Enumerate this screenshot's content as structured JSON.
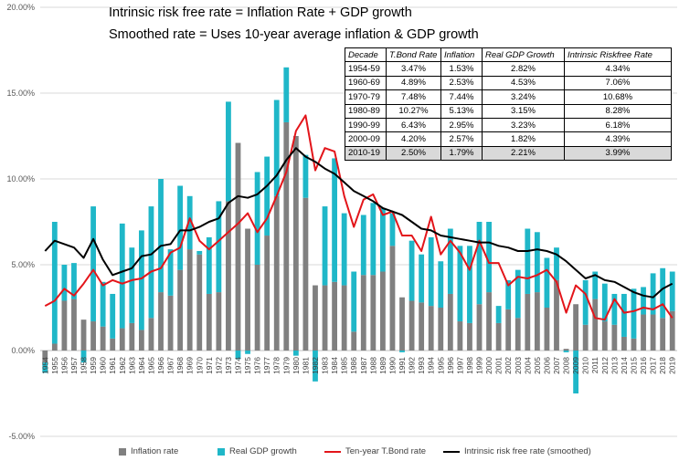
{
  "title_line1": "Intrinsic risk free rate = Inflation Rate + GDP growth",
  "title_line2": "Smoothed rate = Uses 10-year average inflation & GDP growth",
  "chart_data": {
    "type": "bar",
    "stacked": true,
    "x": [
      1954,
      1955,
      1956,
      1957,
      1958,
      1959,
      1960,
      1961,
      1962,
      1963,
      1964,
      1965,
      1966,
      1967,
      1968,
      1969,
      1970,
      1971,
      1972,
      1973,
      1974,
      1975,
      1976,
      1977,
      1978,
      1979,
      1980,
      1981,
      1982,
      1983,
      1984,
      1985,
      1986,
      1987,
      1988,
      1989,
      1990,
      1991,
      1992,
      1993,
      1994,
      1995,
      1996,
      1997,
      1998,
      1999,
      2000,
      2001,
      2002,
      2003,
      2004,
      2005,
      2006,
      2007,
      2008,
      2009,
      2010,
      2011,
      2012,
      2013,
      2014,
      2015,
      2016,
      2017,
      2018,
      2019
    ],
    "ylim": [
      -5,
      20
    ],
    "ytick_labels": [
      "-5.00%",
      "0.00%",
      "5.00%",
      "10.00%",
      "15.00%",
      "20.00%"
    ],
    "ytick_values": [
      -5,
      0,
      5,
      10,
      15,
      20
    ],
    "series": [
      {
        "name": "Inflation rate",
        "color": "#808080",
        "kind": "bar",
        "values": [
          -0.7,
          0.4,
          2.9,
          3.0,
          1.8,
          1.7,
          1.4,
          0.7,
          1.3,
          1.6,
          1.2,
          1.9,
          3.4,
          3.2,
          4.7,
          5.9,
          5.6,
          3.3,
          3.4,
          8.7,
          12.1,
          7.1,
          5.0,
          6.7,
          9.0,
          13.3,
          12.5,
          8.9,
          3.8,
          3.8,
          4.0,
          3.8,
          1.1,
          4.4,
          4.4,
          4.6,
          6.1,
          3.1,
          2.9,
          2.8,
          2.6,
          2.5,
          3.3,
          1.7,
          1.6,
          2.7,
          3.4,
          1.6,
          2.4,
          1.9,
          3.3,
          3.4,
          2.5,
          4.1,
          0.1,
          2.7,
          1.5,
          3.0,
          1.7,
          1.5,
          0.8,
          0.7,
          2.1,
          2.1,
          1.9,
          2.3
        ]
      },
      {
        "name": "Real GDP growth",
        "color": "#1fb7c8",
        "kind": "bar",
        "values": [
          -0.6,
          7.1,
          2.1,
          2.1,
          -0.7,
          6.7,
          2.6,
          2.6,
          6.1,
          4.4,
          5.8,
          6.5,
          6.6,
          2.7,
          4.9,
          3.1,
          0.2,
          3.3,
          5.3,
          5.8,
          -0.5,
          -0.2,
          5.4,
          4.6,
          5.6,
          3.2,
          -0.3,
          2.5,
          -1.8,
          4.6,
          7.2,
          4.2,
          3.5,
          3.5,
          4.2,
          3.7,
          1.9,
          -0.1,
          3.5,
          2.8,
          4.0,
          2.7,
          3.8,
          4.4,
          4.5,
          4.8,
          4.1,
          1.0,
          1.7,
          2.8,
          3.8,
          3.5,
          2.9,
          1.9,
          -0.1,
          -2.5,
          2.6,
          1.6,
          2.2,
          1.8,
          2.5,
          2.9,
          1.6,
          2.4,
          2.9,
          2.3
        ]
      },
      {
        "name": "Ten-year T.Bond rate",
        "color": "#e3151a",
        "kind": "line",
        "values": [
          2.6,
          2.9,
          3.6,
          3.2,
          3.9,
          4.7,
          3.8,
          4.1,
          3.9,
          4.1,
          4.2,
          4.6,
          4.8,
          5.7,
          6.0,
          7.7,
          6.4,
          5.9,
          6.4,
          6.9,
          7.4,
          8.0,
          6.9,
          7.7,
          9.0,
          10.4,
          12.8,
          13.7,
          10.5,
          11.8,
          11.6,
          9.0,
          7.2,
          8.8,
          9.1,
          7.9,
          8.1,
          6.7,
          6.7,
          5.8,
          7.8,
          5.6,
          6.4,
          5.7,
          4.7,
          6.4,
          5.1,
          5.1,
          3.8,
          4.3,
          4.2,
          4.4,
          4.7,
          4.0,
          2.2,
          3.8,
          3.3,
          1.9,
          1.8,
          3.0,
          2.2,
          2.3,
          2.5,
          2.4,
          2.7,
          1.9
        ]
      },
      {
        "name": "Intrinsic risk free rate (smoothed)",
        "color": "#000000",
        "kind": "line",
        "values": [
          5.8,
          6.4,
          6.2,
          6.0,
          5.4,
          6.5,
          5.3,
          4.4,
          4.6,
          4.8,
          5.5,
          5.6,
          6.1,
          6.2,
          7.0,
          7.0,
          7.2,
          7.5,
          7.7,
          8.6,
          9.0,
          8.9,
          9.1,
          9.6,
          10.2,
          11.1,
          11.8,
          11.3,
          11.0,
          10.6,
          10.3,
          9.8,
          9.3,
          9.0,
          8.7,
          8.3,
          8.1,
          7.9,
          7.5,
          7.1,
          7.0,
          6.7,
          6.6,
          6.5,
          6.4,
          6.3,
          6.3,
          6.1,
          6.0,
          5.8,
          5.8,
          5.9,
          5.8,
          5.6,
          5.2,
          4.7,
          4.2,
          4.4,
          4.1,
          4.0,
          3.7,
          3.4,
          3.2,
          3.1,
          3.6,
          3.9
        ]
      }
    ]
  },
  "table": {
    "headers": [
      "Decade",
      "T.Bond Rate",
      "Inflation",
      "Real GDP Growth",
      "Intrinsic Riskfree Rate"
    ],
    "rows": [
      [
        "1954-59",
        "3.47%",
        "1.53%",
        "2.82%",
        "4.34%"
      ],
      [
        "1960-69",
        "4.89%",
        "2.53%",
        "4.53%",
        "7.06%"
      ],
      [
        "1970-79",
        "7.48%",
        "7.44%",
        "3.24%",
        "10.68%"
      ],
      [
        "1980-89",
        "10.27%",
        "5.13%",
        "3.15%",
        "8.28%"
      ],
      [
        "1990-99",
        "6.43%",
        "2.95%",
        "3.23%",
        "6.18%"
      ],
      [
        "2000-09",
        "4.20%",
        "2.57%",
        "1.82%",
        "4.39%"
      ],
      [
        "2010-19",
        "2.50%",
        "1.79%",
        "2.21%",
        "3.99%"
      ]
    ]
  },
  "legend": {
    "inflation": "Inflation rate",
    "gdp": "Real GDP growth",
    "tbond": "Ten-year T.Bond rate",
    "intrinsic": "Intrinsic risk free rate (smoothed)"
  }
}
